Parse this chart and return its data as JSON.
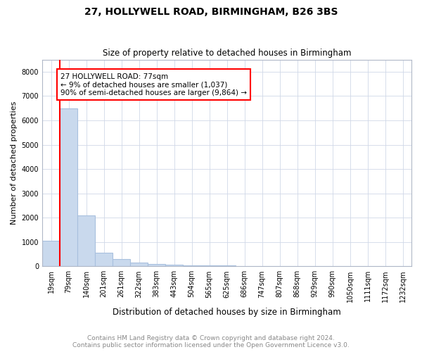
{
  "title": "27, HOLLYWELL ROAD, BIRMINGHAM, B26 3BS",
  "subtitle": "Size of property relative to detached houses in Birmingham",
  "xlabel": "Distribution of detached houses by size in Birmingham",
  "ylabel": "Number of detached properties",
  "footer_line1": "Contains HM Land Registry data © Crown copyright and database right 2024.",
  "footer_line2": "Contains public sector information licensed under the Open Government Licence v3.0.",
  "annotation_line1": "27 HOLLYWELL ROAD: 77sqm",
  "annotation_line2": "← 9% of detached houses are smaller (1,037)",
  "annotation_line3": "90% of semi-detached houses are larger (9,864) →",
  "bar_color": "#c9d9ed",
  "bar_edge_color": "#a8c0de",
  "categories": [
    "19sqm",
    "79sqm",
    "140sqm",
    "201sqm",
    "261sqm",
    "322sqm",
    "383sqm",
    "443sqm",
    "504sqm",
    "565sqm",
    "625sqm",
    "686sqm",
    "747sqm",
    "807sqm",
    "868sqm",
    "929sqm",
    "990sqm",
    "1050sqm",
    "1111sqm",
    "1172sqm",
    "1232sqm"
  ],
  "values": [
    1050,
    6500,
    2100,
    550,
    300,
    150,
    100,
    70,
    50,
    50,
    50,
    0,
    0,
    0,
    0,
    0,
    0,
    0,
    0,
    0,
    0
  ],
  "ylim": [
    0,
    8500
  ],
  "yticks": [
    0,
    1000,
    2000,
    3000,
    4000,
    5000,
    6000,
    7000,
    8000
  ],
  "red_line_x": 0.5,
  "title_fontsize": 10,
  "subtitle_fontsize": 8.5,
  "ylabel_fontsize": 8,
  "xlabel_fontsize": 8.5,
  "tick_fontsize": 7,
  "annot_fontsize": 7.5,
  "footer_fontsize": 6.5
}
